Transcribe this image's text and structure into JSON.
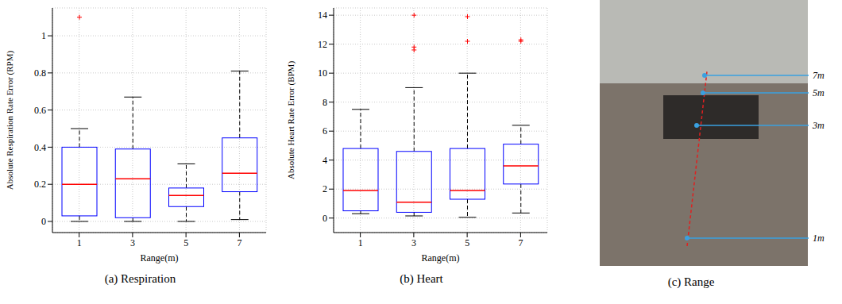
{
  "chart_data": [
    {
      "type": "box",
      "title": "(a) Respiration",
      "x_label": "Range(m)",
      "y_label": "Absolute Respiration Rate Error (RPM)",
      "categories": [
        1,
        3,
        5,
        7
      ],
      "boxes": [
        {
          "whisker_low": 0,
          "q1": 0.03,
          "median": 0.2,
          "q3": 0.4,
          "whisker_high": 0.5,
          "outliers": [
            1.1
          ]
        },
        {
          "whisker_low": 0,
          "q1": 0.02,
          "median": 0.23,
          "q3": 0.39,
          "whisker_high": 0.67,
          "outliers": []
        },
        {
          "whisker_low": 0,
          "q1": 0.08,
          "median": 0.14,
          "q3": 0.18,
          "whisker_high": 0.31,
          "outliers": []
        },
        {
          "whisker_low": 0.01,
          "q1": 0.16,
          "median": 0.26,
          "q3": 0.45,
          "whisker_high": 0.81,
          "outliers": []
        }
      ],
      "ylim": [
        -0.06,
        1.15
      ],
      "yticks": [
        0,
        0.2,
        0.4,
        0.6,
        0.8,
        1
      ],
      "grid": true,
      "color": "#0000ff"
    },
    {
      "type": "box",
      "title": "(b) Heart",
      "x_label": "Range(m)",
      "y_label": "Absolute Heart Rate Error (BPM)",
      "categories": [
        1,
        3,
        5,
        7
      ],
      "boxes": [
        {
          "whisker_low": 0.3,
          "q1": 0.5,
          "median": 1.9,
          "q3": 4.8,
          "whisker_high": 7.5,
          "outliers": []
        },
        {
          "whisker_low": 0.15,
          "q1": 0.4,
          "median": 1.1,
          "q3": 4.6,
          "whisker_high": 9.0,
          "outliers": [
            11.6,
            11.8,
            14
          ]
        },
        {
          "whisker_low": 0.05,
          "q1": 1.3,
          "median": 1.9,
          "q3": 4.8,
          "whisker_high": 10.0,
          "outliers": [
            12.2,
            13.9
          ]
        },
        {
          "whisker_low": 0.35,
          "q1": 2.35,
          "median": 3.6,
          "q3": 5.1,
          "whisker_high": 6.4,
          "outliers": [
            12.2,
            12.3
          ]
        }
      ],
      "ylim": [
        -1,
        14.5
      ],
      "yticks": [
        0,
        2,
        4,
        6,
        8,
        10,
        12,
        14
      ],
      "grid": true,
      "color": "#0000ff"
    }
  ],
  "image": {
    "caption": "(c) Range",
    "labels": [
      "7m",
      "5m",
      "3m",
      "1m"
    ]
  }
}
